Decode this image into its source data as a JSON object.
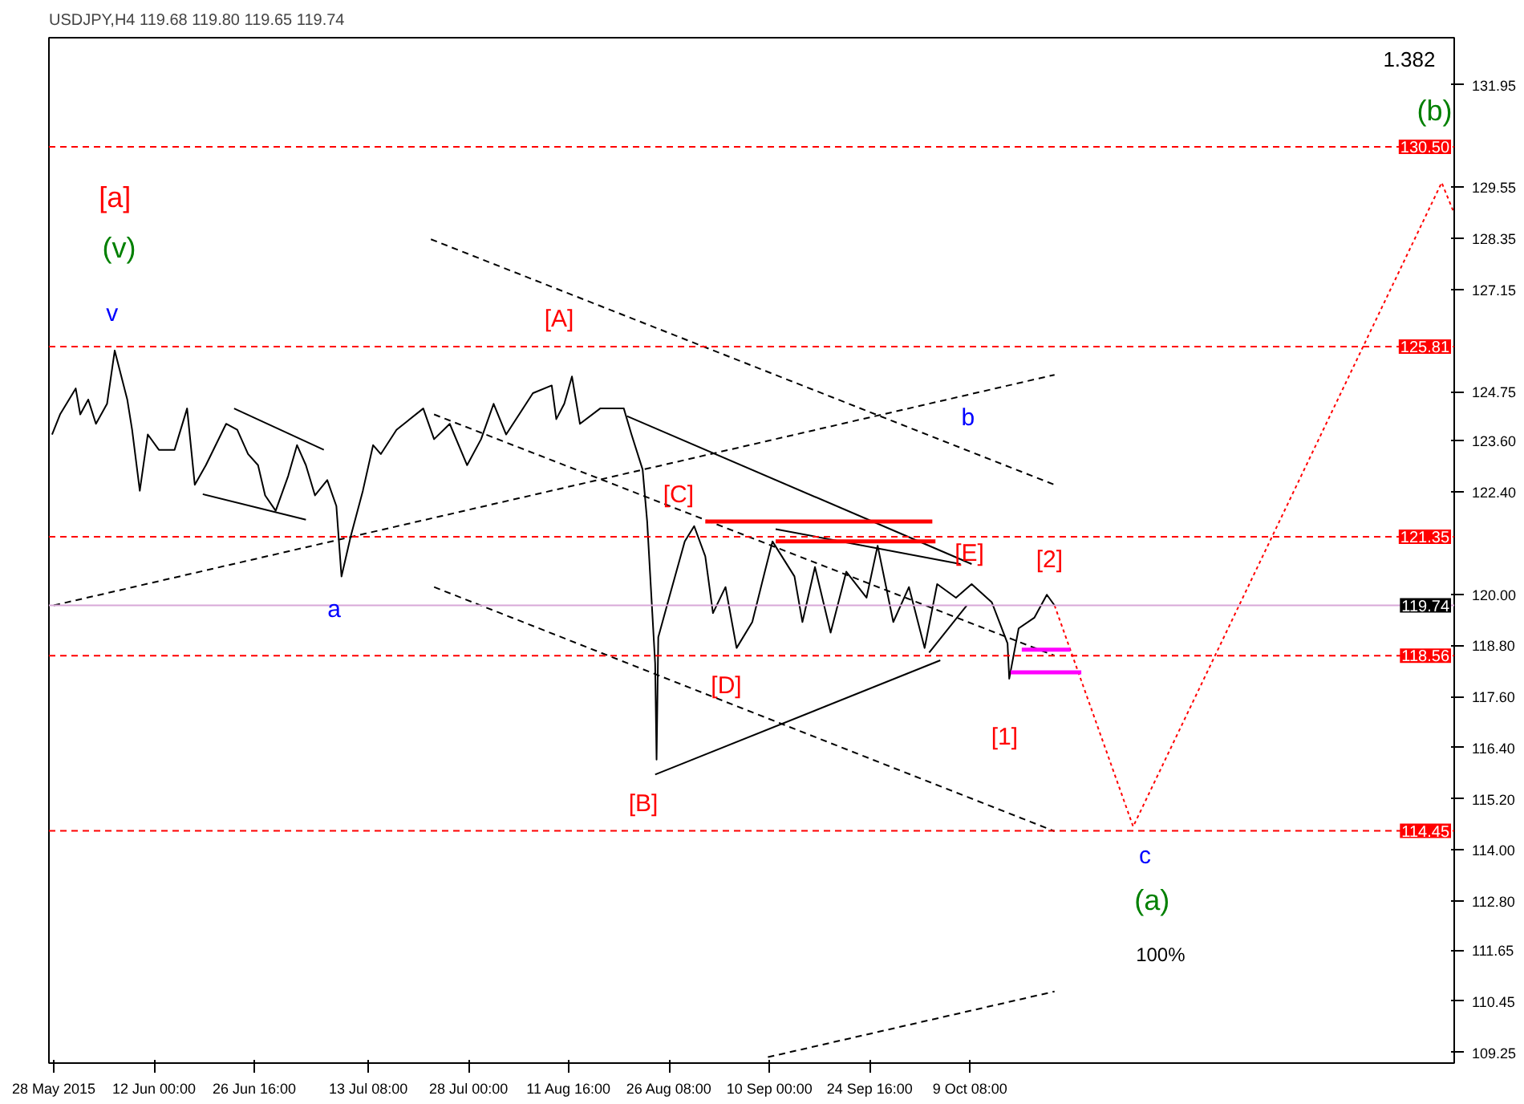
{
  "chart_data": {
    "type": "line",
    "title": "USDJPY,H4  119.68 119.80 119.65 119.74",
    "xlim": [
      "2015-05-27T15:00",
      "2015-12-19T04:00"
    ],
    "ylim": [
      109.0,
      133.06
    ],
    "xticks": [
      {
        "value": "2015-05-28T08:00",
        "label": "28 May 2015"
      },
      {
        "value": "2015-06-12T00:00",
        "label": "12 Jun 00:00"
      },
      {
        "value": "2015-06-26T16:00",
        "label": "26 Jun 16:00"
      },
      {
        "value": "2015-07-13T08:00",
        "label": "13 Jul 08:00"
      },
      {
        "value": "2015-07-28T00:00",
        "label": "28 Jul 00:00"
      },
      {
        "value": "2015-08-11T16:00",
        "label": "11 Aug 16:00"
      },
      {
        "value": "2015-08-26T08:00",
        "label": "26 Aug 08:00"
      },
      {
        "value": "2015-09-10T00:00",
        "label": "10 Sep 00:00"
      },
      {
        "value": "2015-09-24T16:00",
        "label": "24 Sep 16:00"
      },
      {
        "value": "2015-10-09T08:00",
        "label": "9 Oct 08:00"
      }
    ],
    "yticks": [
      {
        "value": 131.95,
        "label": "131.95"
      },
      {
        "value": 129.55,
        "label": "129.55"
      },
      {
        "value": 128.35,
        "label": "128.35"
      },
      {
        "value": 127.15,
        "label": "127.15"
      },
      {
        "value": 124.75,
        "label": "124.75"
      },
      {
        "value": 123.6,
        "label": "123.60"
      },
      {
        "value": 122.4,
        "label": "122.40"
      },
      {
        "value": 120.0,
        "label": "120.00"
      },
      {
        "value": 118.8,
        "label": "118.80"
      },
      {
        "value": 117.6,
        "label": "117.60"
      },
      {
        "value": 116.4,
        "label": "116.40"
      },
      {
        "value": 115.2,
        "label": "115.20"
      },
      {
        "value": 114.0,
        "label": "114.00"
      },
      {
        "value": 112.8,
        "label": "112.80"
      },
      {
        "value": 111.65,
        "label": "111.65"
      },
      {
        "value": 110.45,
        "label": "110.45"
      },
      {
        "value": 109.25,
        "label": "109.25"
      }
    ],
    "grid": false,
    "marker": "none",
    "series": [
      {
        "color": "#000000",
        "line_style": "solid",
        "x": [
          "2015-05-28T02:00",
          "2015-05-29T06:00",
          "2015-05-31T13:00",
          "2015-06-01T05:00",
          "2015-06-02T09:00",
          "2015-06-03T12:00",
          "2015-06-05T03:00",
          "2015-06-06T06:00",
          "2015-06-08T02:00",
          "2015-06-08T19:00",
          "2015-06-09T22:00",
          "2015-06-11T02:00",
          "2015-06-12T17:00",
          "2015-06-15T00:00",
          "2015-06-16T20:00",
          "2015-06-17T23:00",
          "2015-06-19T14:00",
          "2015-06-22T13:00",
          "2015-06-24T04:00",
          "2015-06-25T18:00",
          "2015-06-27T05:00",
          "2015-06-28T06:00",
          "2015-06-29T19:00",
          "2015-07-01T15:00",
          "2015-07-02T22:00",
          "2015-07-04T05:00",
          "2015-07-05T13:00",
          "2015-07-07T08:00",
          "2015-07-08T16:00",
          "2015-07-09T10:00",
          "2015-07-10T18:00",
          "2015-07-12T13:00",
          "2015-07-14T01:00",
          "2015-07-15T04:00",
          "2015-07-17T11:00",
          "2015-07-21T09:00",
          "2015-07-22T23:00",
          "2015-07-25T06:00",
          "2015-07-27T19:00",
          "2015-07-29T20:00",
          "2015-07-31T16:00",
          "2015-08-02T12:00",
          "2015-08-06T10:00",
          "2015-08-09T04:00",
          "2015-08-09T20:00",
          "2015-08-11T00:00",
          "2015-08-12T03:00",
          "2015-08-13T07:00",
          "2015-08-16T06:00",
          "2015-08-19T17:00",
          "2015-08-20T20:00",
          "2015-08-22T11:00",
          "2015-08-23T03:00",
          "2015-08-24T07:00",
          "2015-08-24T12:00",
          "2015-08-24T18:00",
          "2015-08-26T08:00",
          "2015-08-28T15:00",
          "2015-08-30T00:00",
          "2015-08-31T15:00",
          "2015-09-01T18:00",
          "2015-09-03T14:00",
          "2015-09-05T05:00",
          "2015-09-07T12:00",
          "2015-09-09T08:00",
          "2015-09-10T11:00",
          "2015-09-13T16:00",
          "2015-09-14T20:00",
          "2015-09-16T16:00",
          "2015-09-18T23:00",
          "2015-09-21T06:00",
          "2015-09-24T05:00",
          "2015-09-25T20:00",
          "2015-09-28T03:00",
          "2015-09-30T10:00",
          "2015-10-02T17:00",
          "2015-10-04T13:00",
          "2015-10-07T07:00",
          "2015-10-09T14:00",
          "2015-10-12T13:00",
          "2015-10-14T20:00",
          "2015-10-15T02:00",
          "2015-10-16T11:00",
          "2015-10-18T18:00",
          "2015-10-20T14:00",
          "2015-10-21T17:00"
        ],
        "values": [
          123.75,
          124.22,
          124.83,
          124.22,
          124.57,
          124.0,
          124.47,
          125.72,
          124.57,
          123.86,
          122.43,
          123.75,
          123.39,
          123.39,
          124.36,
          122.57,
          123.03,
          124.0,
          123.86,
          123.29,
          123.03,
          122.32,
          121.96,
          122.78,
          123.5,
          123.03,
          122.32,
          122.68,
          122.07,
          120.42,
          121.35,
          122.43,
          123.5,
          123.29,
          123.86,
          124.36,
          123.64,
          124.0,
          123.03,
          123.64,
          124.47,
          123.75,
          124.72,
          124.9,
          124.11,
          124.47,
          125.11,
          124.0,
          124.36,
          124.36,
          123.75,
          122.93,
          121.71,
          118.38,
          116.12,
          118.99,
          119.92,
          121.24,
          121.6,
          120.89,
          119.56,
          120.17,
          118.74,
          119.35,
          120.53,
          121.24,
          120.42,
          119.35,
          120.64,
          119.1,
          120.53,
          119.92,
          121.14,
          119.35,
          120.17,
          118.74,
          120.24,
          119.92,
          120.24,
          119.81,
          118.85,
          118.02,
          119.2,
          119.45,
          119.99,
          119.74
        ]
      },
      {
        "color": "#ff0000",
        "line_style": "dotted",
        "x": [
          "2015-10-21T17:00",
          "2015-11-02T05:00",
          "2015-12-17T08:00",
          "2015-12-19T04:00"
        ],
        "values": [
          119.74,
          114.55,
          129.66,
          128.94
        ]
      },
      {
        "color": "#000000",
        "line_style": "dashed",
        "x": [
          "2015-07-22T12:00",
          "2015-10-21T17:00"
        ],
        "values": [
          128.33,
          122.57
        ]
      },
      {
        "color": "#000000",
        "line_style": "dashed",
        "x": [
          "2015-07-22T23:00",
          "2015-10-21T17:00"
        ],
        "values": [
          124.22,
          118.56
        ]
      },
      {
        "color": "#000000",
        "line_style": "dashed",
        "x": [
          "2015-07-22T23:00",
          "2015-10-21T17:00"
        ],
        "values": [
          120.17,
          114.44
        ]
      },
      {
        "color": "#000000",
        "line_style": "dashed",
        "x": [
          "2015-05-28T08:00",
          "2015-10-21T17:00"
        ],
        "values": [
          119.74,
          125.15
        ]
      },
      {
        "color": "#000000",
        "line_style": "dashed",
        "x": [
          "2015-09-09T19:00",
          "2015-10-21T17:00"
        ],
        "values": [
          109.14,
          110.68
        ]
      },
      {
        "color": "#000000",
        "line_style": "solid",
        "x": [
          "2015-08-20T04:00",
          "2015-10-09T14:00"
        ],
        "values": [
          124.18,
          120.71
        ]
      },
      {
        "color": "#000000",
        "line_style": "solid",
        "x": [
          "2015-08-24T07:00",
          "2015-10-05T00:00"
        ],
        "values": [
          115.77,
          118.45
        ]
      },
      {
        "color": "#000000",
        "line_style": "solid",
        "x": [
          "2015-06-23T17:00",
          "2015-07-06T20:00"
        ],
        "values": [
          124.36,
          123.39
        ]
      },
      {
        "color": "#000000",
        "line_style": "solid",
        "x": [
          "2015-06-19T03:00",
          "2015-07-04T05:00"
        ],
        "values": [
          122.35,
          121.75
        ]
      },
      {
        "color": "#000000",
        "line_style": "solid",
        "x": [
          "2015-09-10T22:00",
          "2015-10-07T23:00"
        ],
        "values": [
          121.53,
          120.71
        ]
      },
      {
        "color": "#000000",
        "line_style": "solid",
        "x": [
          "2015-10-03T09:00",
          "2015-10-08T21:00"
        ],
        "values": [
          118.63,
          119.74
        ]
      },
      {
        "color": "#ff0000",
        "line_style": "solid",
        "x": [
          "2015-08-31T15:00",
          "2015-10-03T20:00"
        ],
        "values": [
          121.71,
          121.71
        ]
      },
      {
        "color": "#ff0000",
        "line_style": "solid",
        "x": [
          "2015-09-10T22:00",
          "2015-10-04T07:00"
        ],
        "values": [
          121.24,
          121.24
        ]
      },
      {
        "color": "#ff00ff",
        "line_style": "solid",
        "x": [
          "2015-10-16T22:00",
          "2015-10-24T00:00"
        ],
        "values": [
          118.7,
          118.7
        ]
      },
      {
        "color": "#ff00ff",
        "line_style": "solid",
        "x": [
          "2015-10-15T07:00",
          "2015-10-25T15:00"
        ],
        "values": [
          118.17,
          118.17
        ]
      }
    ],
    "ref_lines": [
      {
        "axis": "y",
        "value": 130.5,
        "label": "130.50",
        "color": "#ff0000",
        "line_style": "dashed"
      },
      {
        "axis": "y",
        "value": 125.81,
        "label": "125.81",
        "color": "#ff0000",
        "line_style": "dashed"
      },
      {
        "axis": "y",
        "value": 121.35,
        "label": "121.35",
        "color": "#ff0000",
        "line_style": "dashed"
      },
      {
        "axis": "y",
        "value": 118.56,
        "label": "118.56",
        "color": "#ff0000",
        "line_style": "dashed"
      },
      {
        "axis": "y",
        "value": 114.45,
        "label": "114.45",
        "color": "#ff0000",
        "line_style": "dashed"
      },
      {
        "axis": "y",
        "value": 119.74,
        "label": "119.74",
        "color": "#d8a8d8",
        "line_style": "solid"
      }
    ],
    "annotations": [
      "[a]",
      "(v)",
      "v",
      "[A]",
      "a",
      "[C]",
      "[B]",
      "[D]",
      "[E]",
      "[2]",
      "[1]",
      "b",
      "c",
      "(a)",
      "100%",
      "(b)",
      "1.382"
    ]
  }
}
